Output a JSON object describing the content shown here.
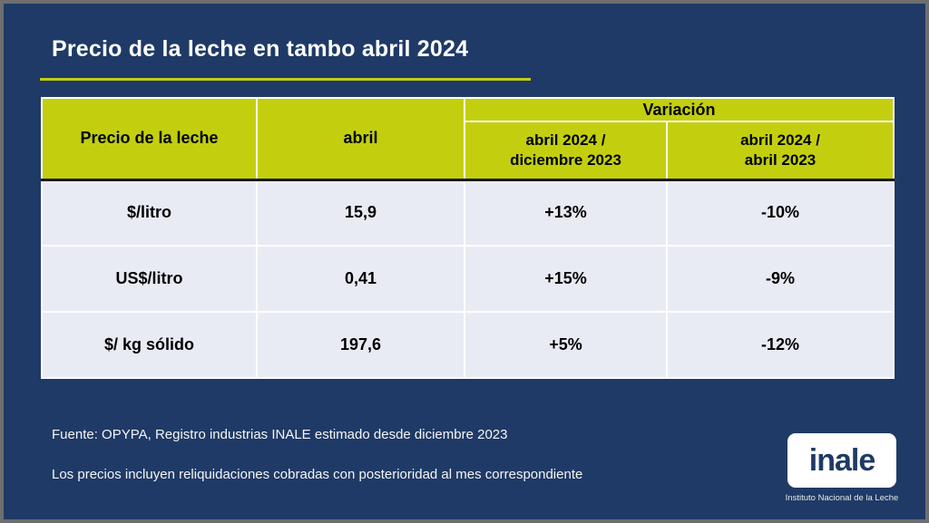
{
  "slide": {
    "title": "Precio de la leche en tambo abril 2024",
    "footnotes": {
      "source": "Fuente: OPYPA, Registro industrias INALE estimado desde diciembre 2023",
      "note": "Los precios incluyen reliquidaciones cobradas con posterioridad al mes correspondiente"
    },
    "logo": {
      "name": "inale",
      "caption": "Instituto Nacional de la Leche"
    },
    "colors": {
      "background": "#1F3A66",
      "frame_border": "#6E6E6E",
      "header_green": "#C3CF0E",
      "accent_line": "#C3CF0E",
      "cell_background": "#E9EBF4",
      "header_text": "#000000",
      "body_text": "#FFFFFF",
      "header_bottom_rule": "#1B1B1B"
    }
  },
  "table": {
    "headers": {
      "price_label": "Precio de la leche",
      "month": "abril",
      "variation_group": "Variación",
      "variation_vs_december": "abril 2024 /\ndiciembre 2023",
      "variation_vs_april": "abril 2024 /\nabril  2023"
    },
    "rows": [
      {
        "label": "$/litro",
        "april_value": "15,9",
        "var_vs_dec2023": "+13%",
        "var_vs_apr2023": "-10%"
      },
      {
        "label": "US$/litro",
        "april_value": "0,41",
        "var_vs_dec2023": "+15%",
        "var_vs_apr2023": "-9%"
      },
      {
        "label": "$/ kg sólido",
        "april_value": "197,6",
        "var_vs_dec2023": "+5%",
        "var_vs_apr2023": "-12%"
      }
    ]
  }
}
